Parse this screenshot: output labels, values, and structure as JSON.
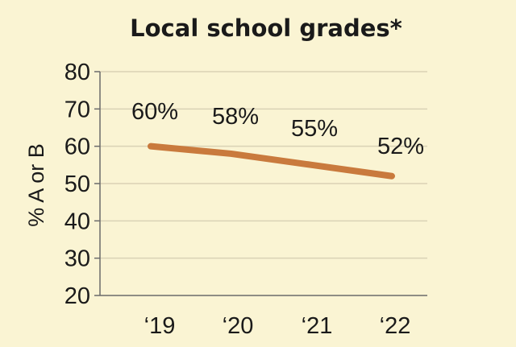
{
  "chart_data": {
    "type": "line",
    "title": "Local school grades*",
    "ylabel": "% A or B",
    "xlabel": "",
    "categories": [
      "‘19",
      "‘20",
      "‘21",
      "‘22"
    ],
    "series": [
      {
        "values": [
          60,
          58,
          55,
          52
        ],
        "labels": [
          "60%",
          "58%",
          "55%",
          "52%"
        ]
      }
    ],
    "ylim": [
      20,
      80
    ],
    "yticks": [
      "20",
      "30",
      "40",
      "50",
      "60",
      "70",
      "80"
    ],
    "grid": true,
    "legend": "none",
    "colors": {
      "line": "#c97a3d",
      "grid": "#d9d2b5",
      "axis": "#6b6b6b",
      "background": "#faf4d3"
    }
  }
}
